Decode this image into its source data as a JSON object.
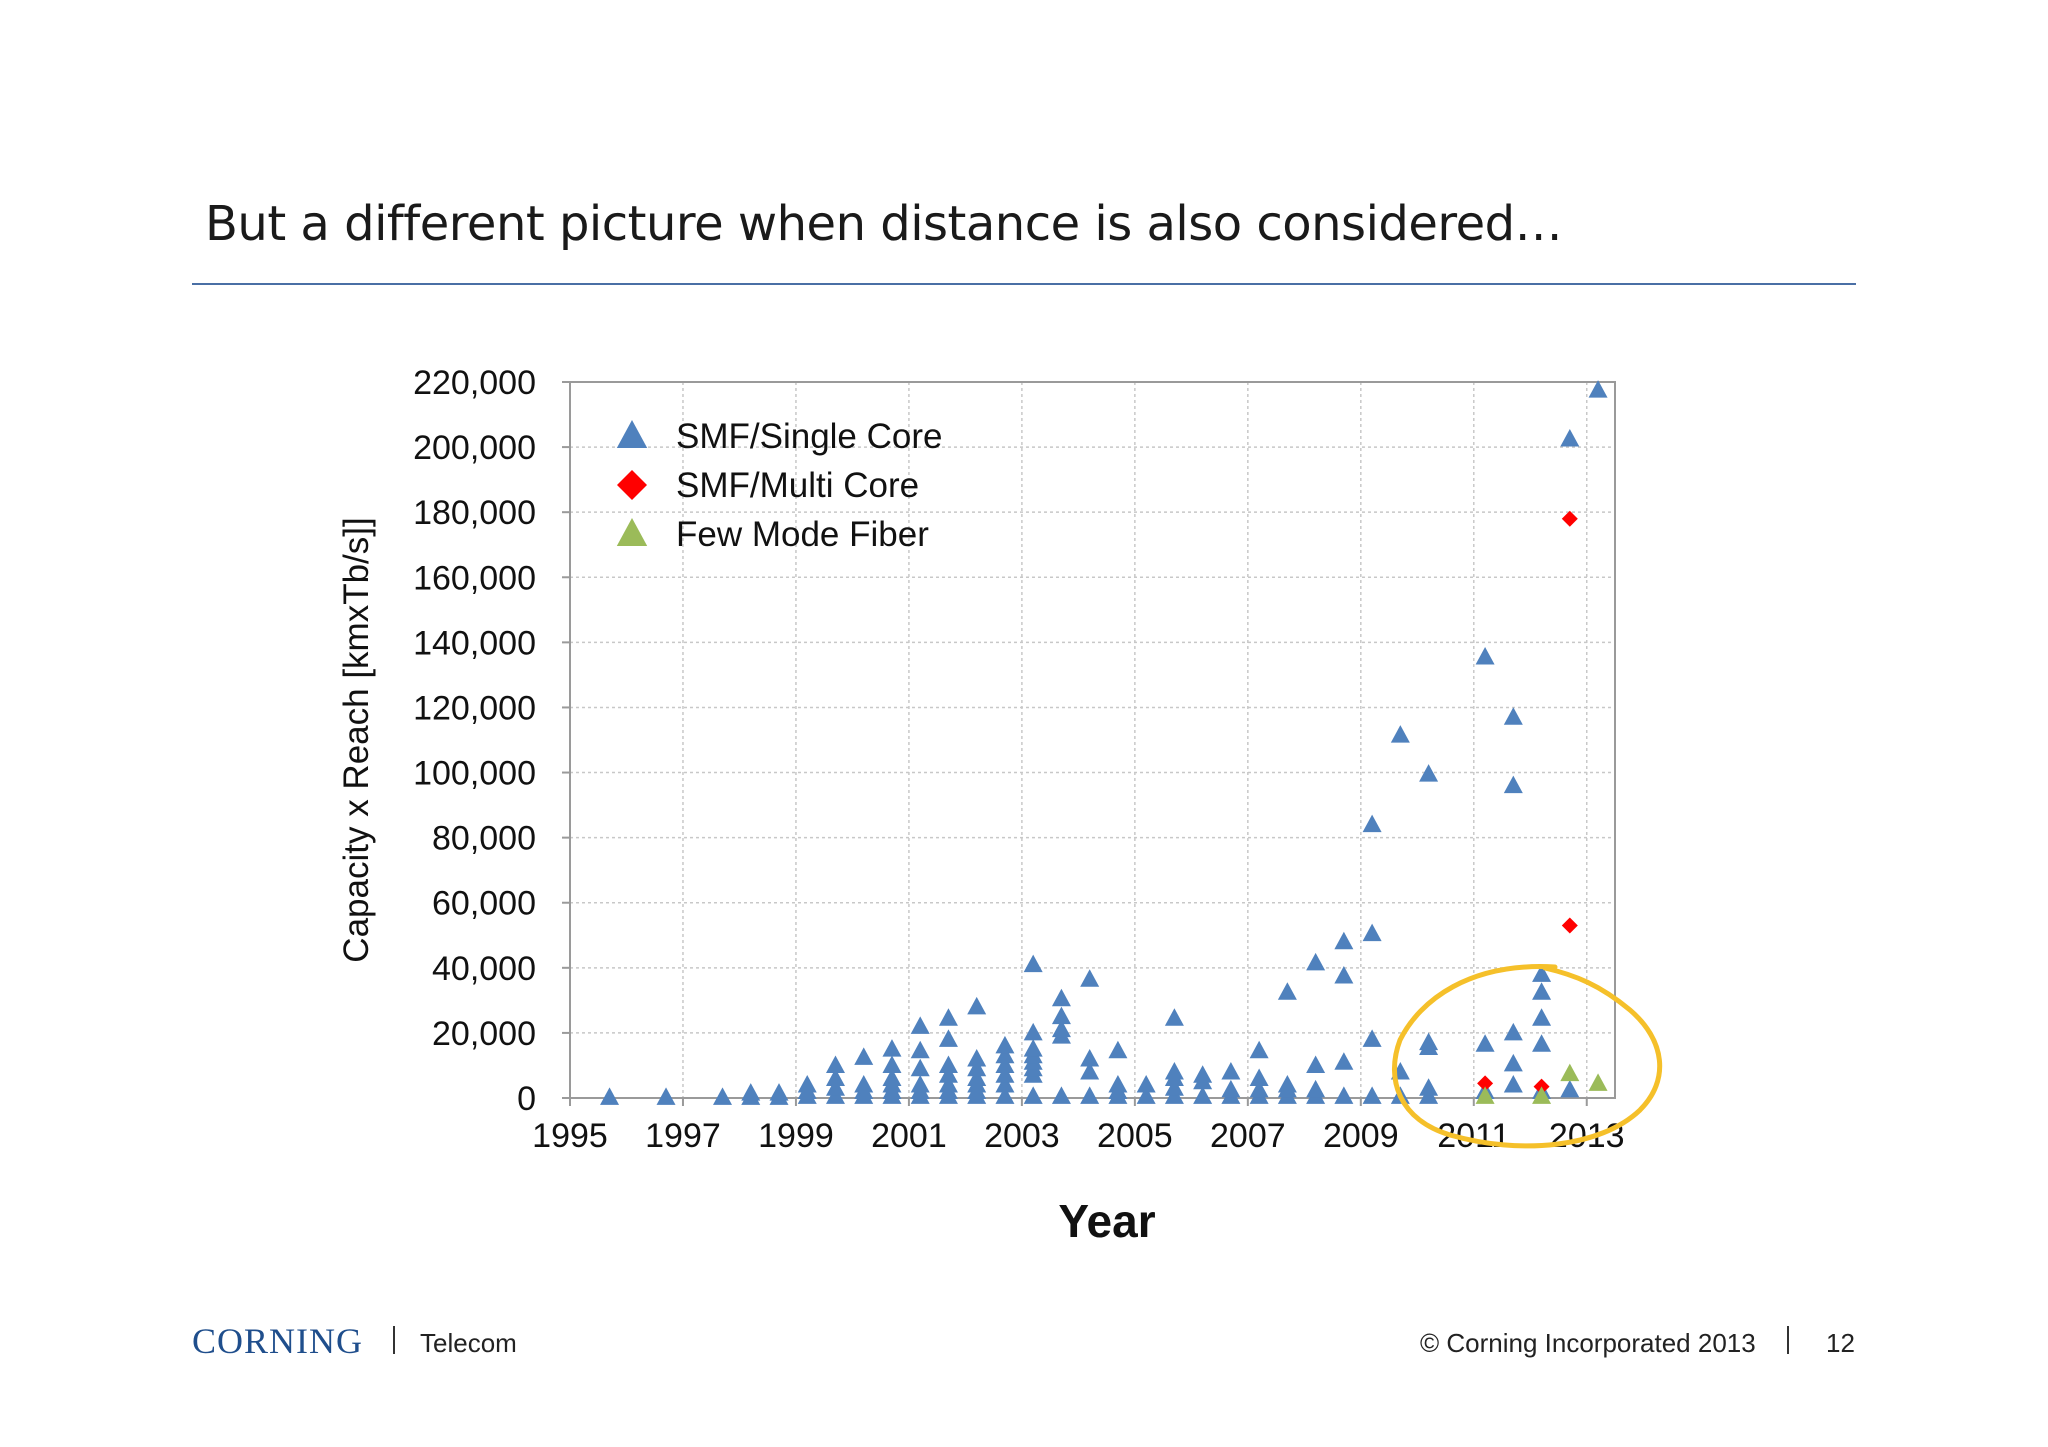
{
  "slide": {
    "title": "But a different picture when distance is also considered…"
  },
  "footer": {
    "logo": "CORNING",
    "division": "Telecom",
    "copyright": "© Corning Incorporated 2013",
    "page_number": "12"
  },
  "colors": {
    "smf_single": "#4f81bd",
    "smf_multi": "#ff0000",
    "few_mode": "#9bbb59",
    "highlight": "#f5c02a"
  },
  "chart_data": {
    "type": "scatter",
    "title": "",
    "xlabel": "Year",
    "ylabel": "Capacity x Reach [kmxTb/s]]",
    "xlim": [
      1995,
      2013.5
    ],
    "ylim": [
      0,
      220000
    ],
    "x_ticks": [
      "1995",
      "1997",
      "1999",
      "2001",
      "2003",
      "2005",
      "2007",
      "2009",
      "2011",
      "2013"
    ],
    "y_ticks": [
      "0",
      "20,000",
      "40,000",
      "60,000",
      "80,000",
      "100,000",
      "120,000",
      "140,000",
      "160,000",
      "180,000",
      "200,000",
      "220,000"
    ],
    "grid": true,
    "legend_position": "top-left",
    "annotation": "hand-drawn circle highlighting 2010-2013, low values",
    "series": [
      {
        "name": "SMF/Single Core",
        "marker": "triangle",
        "points": [
          [
            1995.7,
            200
          ],
          [
            1996.7,
            200
          ],
          [
            1997.7,
            200
          ],
          [
            1998.2,
            200
          ],
          [
            1998.2,
            1500
          ],
          [
            1998.7,
            200
          ],
          [
            1998.7,
            1500
          ],
          [
            1999.2,
            500
          ],
          [
            1999.2,
            2000
          ],
          [
            1999.2,
            4000
          ],
          [
            1999.7,
            500
          ],
          [
            1999.7,
            3000
          ],
          [
            1999.7,
            6000
          ],
          [
            1999.7,
            10000
          ],
          [
            2000.2,
            500
          ],
          [
            2000.2,
            2000
          ],
          [
            2000.2,
            4000
          ],
          [
            2000.7,
            500
          ],
          [
            2000.7,
            2000
          ],
          [
            2000.7,
            4000
          ],
          [
            2000.7,
            6000
          ],
          [
            2000.7,
            10000
          ],
          [
            2000.2,
            12500
          ],
          [
            2000.7,
            15000
          ],
          [
            2001.2,
            500
          ],
          [
            2001.2,
            2000
          ],
          [
            2001.2,
            4000
          ],
          [
            2001.2,
            9000
          ],
          [
            2001.2,
            14500
          ],
          [
            2001.2,
            22000
          ],
          [
            2001.7,
            500
          ],
          [
            2001.7,
            2000
          ],
          [
            2001.7,
            4000
          ],
          [
            2001.7,
            7000
          ],
          [
            2001.7,
            10000
          ],
          [
            2001.7,
            18000
          ],
          [
            2001.7,
            24500
          ],
          [
            2002.2,
            500
          ],
          [
            2002.2,
            2000
          ],
          [
            2002.2,
            4000
          ],
          [
            2002.2,
            6000
          ],
          [
            2002.2,
            9000
          ],
          [
            2002.2,
            12000
          ],
          [
            2002.2,
            28000
          ],
          [
            2002.7,
            500
          ],
          [
            2002.7,
            4000
          ],
          [
            2002.7,
            7000
          ],
          [
            2002.7,
            10000
          ],
          [
            2002.7,
            13000
          ],
          [
            2002.7,
            16000
          ],
          [
            2003.2,
            500
          ],
          [
            2003.2,
            7000
          ],
          [
            2003.2,
            9000
          ],
          [
            2003.2,
            11000
          ],
          [
            2003.2,
            13000
          ],
          [
            2003.2,
            15000
          ],
          [
            2003.2,
            20000
          ],
          [
            2003.2,
            41000
          ],
          [
            2003.7,
            500
          ],
          [
            2003.7,
            19000
          ],
          [
            2003.7,
            21000
          ],
          [
            2003.7,
            25000
          ],
          [
            2003.7,
            30500
          ],
          [
            2004.2,
            500
          ],
          [
            2004.2,
            8000
          ],
          [
            2004.2,
            12000
          ],
          [
            2004.2,
            36500
          ],
          [
            2004.7,
            500
          ],
          [
            2004.7,
            2000
          ],
          [
            2004.7,
            4000
          ],
          [
            2004.7,
            14500
          ],
          [
            2005.2,
            500
          ],
          [
            2005.2,
            4000
          ],
          [
            2005.7,
            500
          ],
          [
            2005.7,
            3000
          ],
          [
            2005.7,
            6000
          ],
          [
            2005.7,
            8000
          ],
          [
            2005.7,
            24500
          ],
          [
            2006.2,
            500
          ],
          [
            2006.2,
            5000
          ],
          [
            2006.2,
            7000
          ],
          [
            2006.7,
            500
          ],
          [
            2006.7,
            2500
          ],
          [
            2006.7,
            8000
          ],
          [
            2007.2,
            500
          ],
          [
            2007.2,
            2500
          ],
          [
            2007.2,
            6000
          ],
          [
            2007.2,
            14500
          ],
          [
            2007.7,
            500
          ],
          [
            2007.7,
            2500
          ],
          [
            2007.7,
            4000
          ],
          [
            2007.7,
            32500
          ],
          [
            2008.2,
            500
          ],
          [
            2008.2,
            2500
          ],
          [
            2008.2,
            10000
          ],
          [
            2008.2,
            41500
          ],
          [
            2008.7,
            500
          ],
          [
            2008.7,
            11000
          ],
          [
            2008.7,
            37500
          ],
          [
            2008.7,
            48000
          ],
          [
            2009.2,
            500
          ],
          [
            2009.2,
            18000
          ],
          [
            2009.2,
            50500
          ],
          [
            2009.2,
            84000
          ],
          [
            2009.7,
            500
          ],
          [
            2009.7,
            8000
          ],
          [
            2009.7,
            111500
          ],
          [
            2010.2,
            500
          ],
          [
            2010.2,
            3000
          ],
          [
            2010.2,
            15500
          ],
          [
            2010.2,
            17000
          ],
          [
            2010.2,
            99500
          ],
          [
            2011.2,
            2000
          ],
          [
            2011.2,
            16500
          ],
          [
            2011.2,
            135500
          ],
          [
            2011.7,
            4000
          ],
          [
            2011.7,
            10500
          ],
          [
            2011.7,
            20000
          ],
          [
            2011.7,
            96000
          ],
          [
            2011.7,
            117000
          ],
          [
            2012.2,
            2000
          ],
          [
            2012.2,
            16500
          ],
          [
            2012.2,
            24500
          ],
          [
            2012.2,
            32500
          ],
          [
            2012.2,
            38000
          ],
          [
            2012.7,
            2500
          ],
          [
            2012.7,
            202500
          ],
          [
            2013.2,
            217500
          ]
        ]
      },
      {
        "name": "SMF/Multi Core",
        "marker": "diamond",
        "points": [
          [
            2011.2,
            4500
          ],
          [
            2012.2,
            3500
          ],
          [
            2012.7,
            53000
          ],
          [
            2012.7,
            178000
          ]
        ]
      },
      {
        "name": "Few Mode Fiber",
        "marker": "triangle",
        "points": [
          [
            2011.2,
            500
          ],
          [
            2012.2,
            500
          ],
          [
            2012.7,
            7500
          ],
          [
            2013.2,
            4500
          ]
        ]
      }
    ]
  }
}
